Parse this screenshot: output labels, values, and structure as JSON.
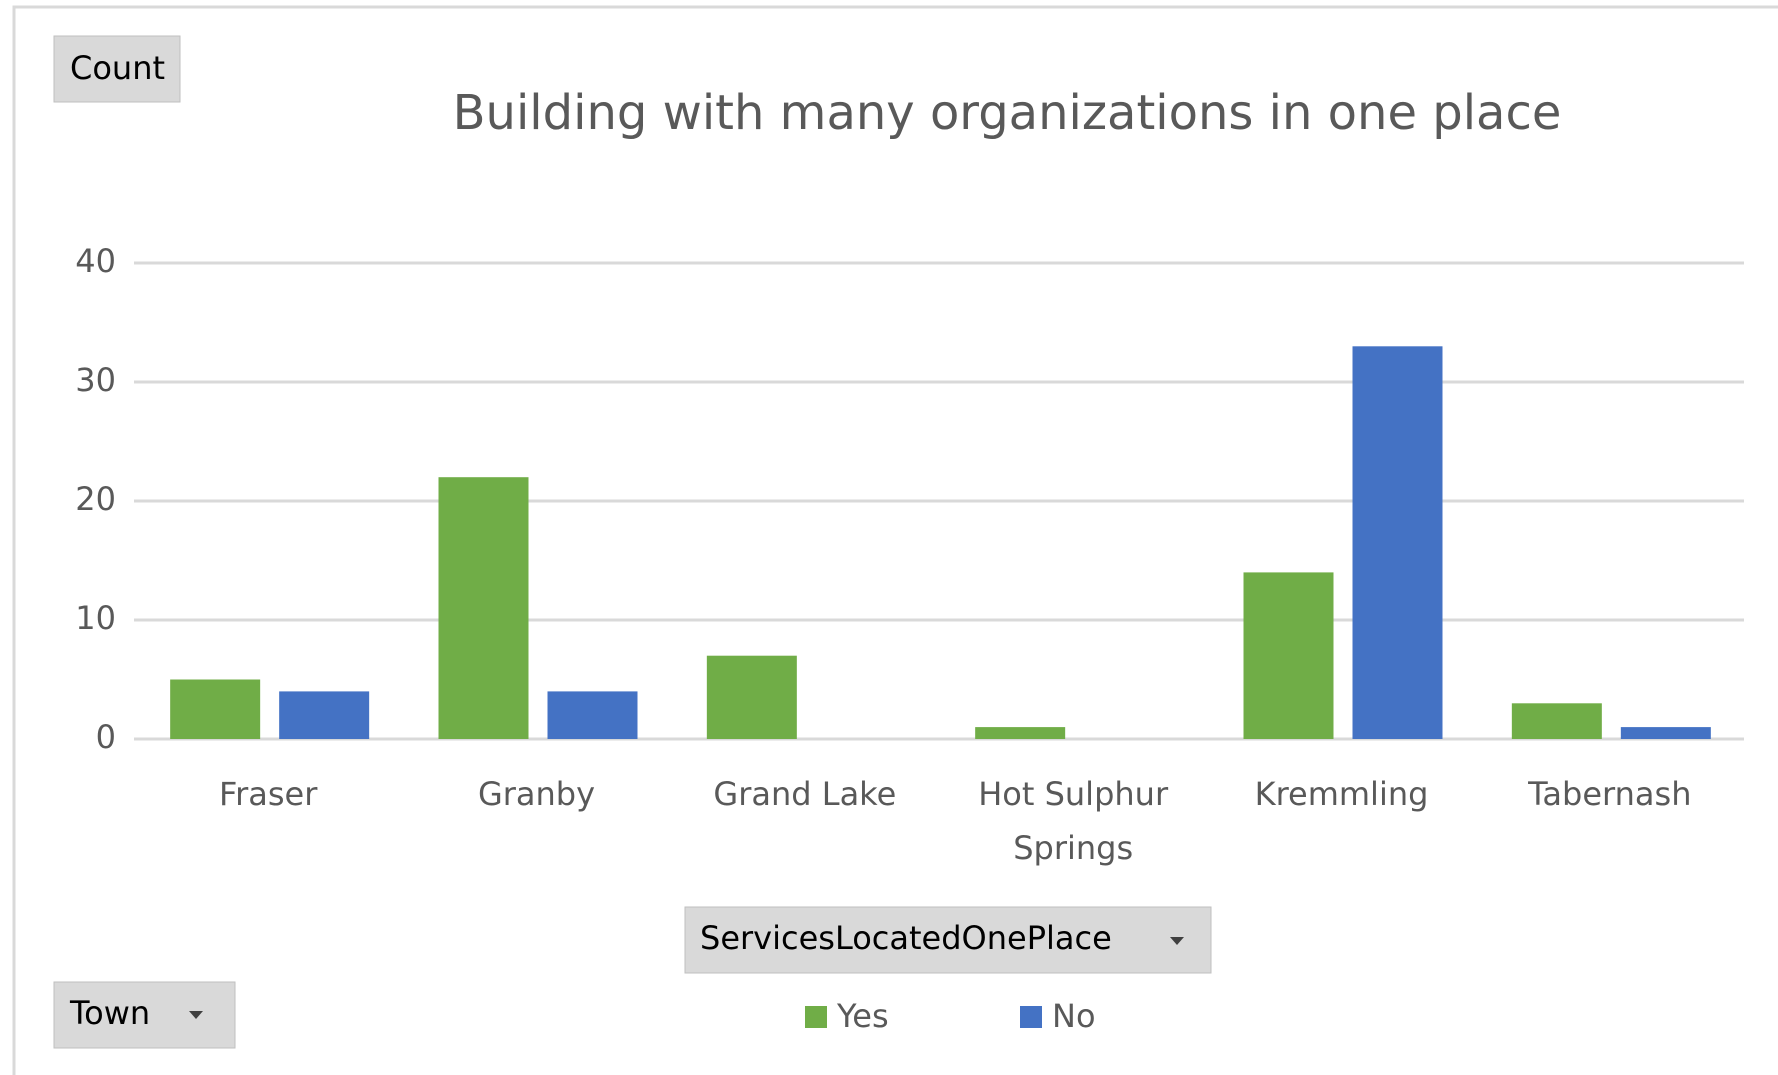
{
  "chart_data": {
    "type": "bar",
    "title": "Building with many organizations in one place",
    "categories": [
      "Fraser",
      "Granby",
      "Grand Lake",
      "Hot Sulphur Springs",
      "Kremmling",
      "Tabernash"
    ],
    "series": [
      {
        "name": "Yes",
        "color": "#70ad47",
        "values": [
          5,
          22,
          7,
          1,
          14,
          3
        ]
      },
      {
        "name": "No",
        "color": "#4472c4",
        "values": [
          4,
          4,
          null,
          null,
          33,
          1
        ]
      }
    ],
    "ylim": [
      0,
      40
    ],
    "yticks": [
      0,
      10,
      20,
      30,
      40
    ],
    "grid": true,
    "field_buttons": {
      "value": "Count",
      "axis": "Town",
      "legend": "ServicesLocatedOnePlace"
    }
  }
}
